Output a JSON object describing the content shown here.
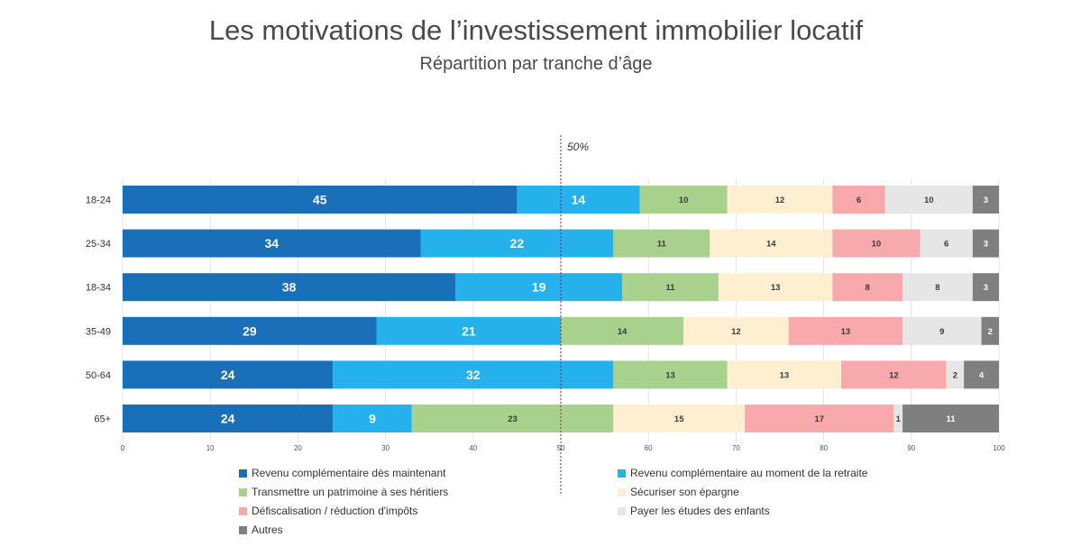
{
  "chart_data": {
    "type": "bar",
    "orientation": "horizontal",
    "stacked": true,
    "title": "Les motivations de l’investissement immobilier locatif",
    "subtitle": "Répartition par tranche d’âge",
    "categories": [
      "18-24",
      "25-34",
      "18-34",
      "35-49",
      "50-64",
      "65+"
    ],
    "series": [
      {
        "name": "Revenu complémentaire dès maintenant",
        "color": "#1a70b8",
        "values": [
          45,
          34,
          38,
          29,
          24,
          24
        ]
      },
      {
        "name": "Revenu complémentaire au moment de la retraite",
        "color": "#24b1ec",
        "values": [
          14,
          22,
          19,
          21,
          32,
          9
        ]
      },
      {
        "name": "Transmettre un patrimoine à ses héritiers",
        "color": "#a9d18e",
        "values": [
          10,
          11,
          11,
          14,
          13,
          23
        ]
      },
      {
        "name": "Sécuriser son épargne",
        "color": "#fdefd0",
        "values": [
          12,
          14,
          13,
          12,
          13,
          15
        ]
      },
      {
        "name": "Défiscalisation / réduction d'impôts",
        "color": "#f8a9ab",
        "values": [
          6,
          10,
          8,
          13,
          12,
          17
        ]
      },
      {
        "name": "Payer les études des enfants",
        "color": "#e6e6e6",
        "values": [
          10,
          6,
          8,
          9,
          2,
          1
        ]
      },
      {
        "name": "Autres",
        "color": "#7f7f7f",
        "values": [
          3,
          3,
          3,
          2,
          4,
          11
        ]
      }
    ],
    "xlim": [
      0,
      100
    ],
    "xticks": [
      "0",
      "10",
      "20",
      "30",
      "40",
      "50",
      "60",
      "70",
      "80",
      "90",
      "100"
    ],
    "reference_line": {
      "value": 50,
      "label": "50%"
    },
    "grid": true,
    "legend": "bottom"
  }
}
